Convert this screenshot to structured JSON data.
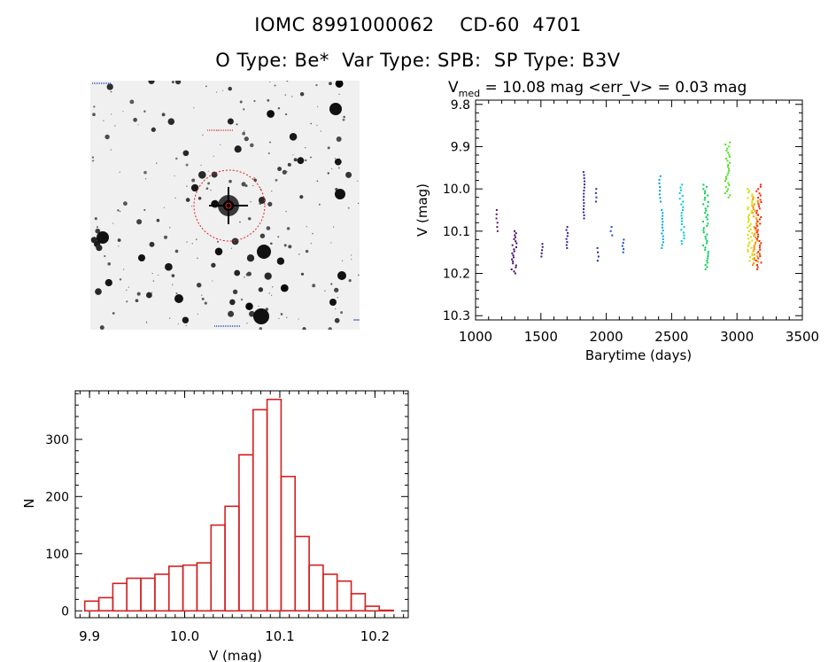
{
  "header": {
    "title_line1": "IOMC 8991000062    CD-60  4701",
    "title_line2": "O Type: Be*  Var Type: SPB:  SP Type: B3V"
  },
  "chart_data": [
    {
      "type": "image",
      "name": "finding_chart",
      "description_labels": []
    },
    {
      "type": "scatter",
      "name": "light_curve",
      "title_main": "V",
      "title_sub": "med",
      "title_rest": " = 10.08 mag <err_V> = 0.03 mag",
      "xlabel": "Barytime (days)",
      "ylabel": "V (mag)",
      "xlim": [
        1000,
        3500
      ],
      "ylim": [
        10.31,
        9.79
      ],
      "xticks": [
        1000,
        1500,
        2000,
        2500,
        3000,
        3500
      ],
      "yticks": [
        9.8,
        9.9,
        10.0,
        10.1,
        10.2,
        10.3
      ],
      "ytick_labels": [
        "9.8",
        "9.9",
        "10.0",
        "10.1",
        "10.2",
        "10.3"
      ],
      "clusters": [
        {
          "x": 1165,
          "ymin": 10.05,
          "ymax": 10.1,
          "n": 6,
          "color": "#5a1a66"
        },
        {
          "x": 1295,
          "ymin": 10.1,
          "ymax": 10.2,
          "n": 22,
          "color": "#4a1070"
        },
        {
          "x": 1510,
          "ymin": 10.13,
          "ymax": 10.16,
          "n": 5,
          "color": "#3a1a80"
        },
        {
          "x": 1700,
          "ymin": 10.09,
          "ymax": 10.14,
          "n": 8,
          "color": "#3a1a90"
        },
        {
          "x": 1830,
          "ymin": 9.96,
          "ymax": 10.07,
          "n": 16,
          "color": "#3a20a0"
        },
        {
          "x": 1920,
          "ymin": 10.0,
          "ymax": 10.03,
          "n": 4,
          "color": "#2030b0"
        },
        {
          "x": 1935,
          "ymin": 10.14,
          "ymax": 10.17,
          "n": 4,
          "color": "#2030b0"
        },
        {
          "x": 2040,
          "ymin": 10.09,
          "ymax": 10.11,
          "n": 3,
          "color": "#2048c0"
        },
        {
          "x": 2130,
          "ymin": 10.12,
          "ymax": 10.15,
          "n": 5,
          "color": "#2050c8"
        },
        {
          "x": 2410,
          "ymin": 9.97,
          "ymax": 10.03,
          "n": 8,
          "color": "#00a0e0"
        },
        {
          "x": 2430,
          "ymin": 10.05,
          "ymax": 10.14,
          "n": 14,
          "color": "#00a8e0"
        },
        {
          "x": 2580,
          "ymin": 9.99,
          "ymax": 10.13,
          "n": 22,
          "color": "#00c8d8"
        },
        {
          "x": 2760,
          "ymin": 9.99,
          "ymax": 10.19,
          "n": 40,
          "color": "#00d050"
        },
        {
          "x": 2930,
          "ymin": 9.89,
          "ymax": 10.02,
          "n": 28,
          "color": "#50e020"
        },
        {
          "x": 3100,
          "ymin": 10.0,
          "ymax": 10.17,
          "n": 40,
          "color": "#d0e000"
        },
        {
          "x": 3140,
          "ymin": 10.02,
          "ymax": 10.18,
          "n": 40,
          "color": "#ff9000"
        },
        {
          "x": 3165,
          "ymin": 9.99,
          "ymax": 10.19,
          "n": 40,
          "color": "#f02800"
        }
      ]
    },
    {
      "type": "bar",
      "name": "histogram",
      "xlabel": "V (mag)",
      "ylabel": "N",
      "xlim": [
        9.885,
        10.235
      ],
      "ylim": [
        -12,
        385
      ],
      "xticks": [
        9.9,
        10.0,
        10.1,
        10.2
      ],
      "xtick_labels": [
        "9.9",
        "10.0",
        "10.1",
        "10.2"
      ],
      "yticks": [
        0,
        100,
        200,
        300
      ],
      "ytick_labels": [
        "0",
        "100",
        "200",
        "300"
      ],
      "bin_start": 9.895,
      "bin_width": 0.01474,
      "values": [
        17,
        23,
        48,
        57,
        57,
        64,
        78,
        80,
        84,
        150,
        183,
        273,
        352,
        370,
        235,
        130,
        80,
        64,
        52,
        30,
        8,
        1
      ],
      "bar_color": "#d42020"
    }
  ]
}
